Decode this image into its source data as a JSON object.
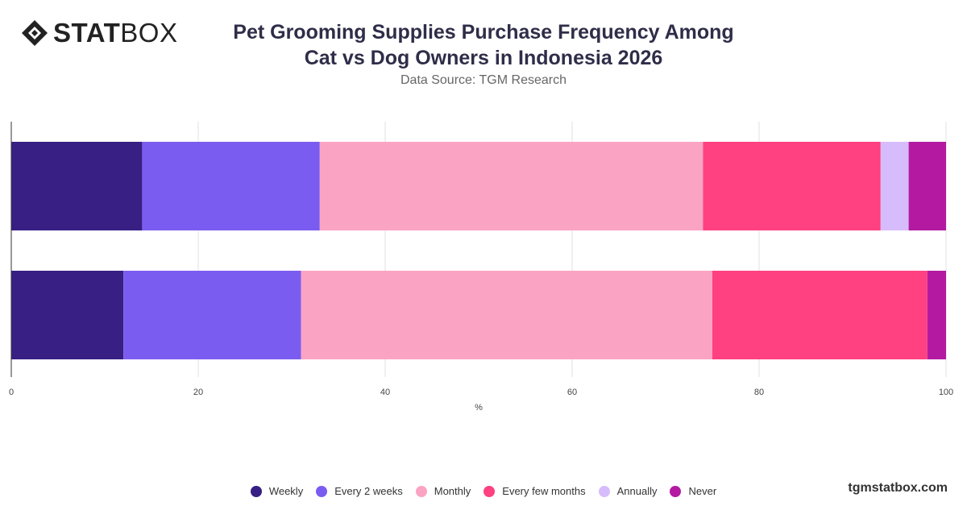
{
  "brand": {
    "logo_bold": "STAT",
    "logo_light": "BOX",
    "footer": "tgmstatbox.com"
  },
  "header": {
    "title_line1": "Pet Grooming Supplies Purchase Frequency Among",
    "title_line2": "Cat vs Dog Owners in Indonesia 2026",
    "subtitle": "Data Source: TGM Research"
  },
  "chart_data": {
    "type": "bar",
    "orientation": "horizontal",
    "stacked": true,
    "categories": [
      "",
      ""
    ],
    "series": [
      {
        "name": "Weekly",
        "color": "#371F84",
        "values": [
          14,
          12
        ]
      },
      {
        "name": "Every 2 weeks",
        "color": "#7B5CF0",
        "values": [
          19,
          19
        ]
      },
      {
        "name": "Monthly",
        "color": "#FBA3C3",
        "values": [
          41,
          44
        ]
      },
      {
        "name": "Every few months",
        "color": "#FF4081",
        "values": [
          19,
          23
        ]
      },
      {
        "name": "Annually",
        "color": "#D7BCFB",
        "values": [
          3,
          0
        ]
      },
      {
        "name": "Never",
        "color": "#B41AA1",
        "values": [
          4,
          2
        ]
      }
    ],
    "xlabel": "%",
    "xlim": [
      0,
      100
    ],
    "xticks": [
      0,
      20,
      40,
      60,
      80,
      100
    ],
    "grid": true,
    "legend_position": "bottom"
  }
}
